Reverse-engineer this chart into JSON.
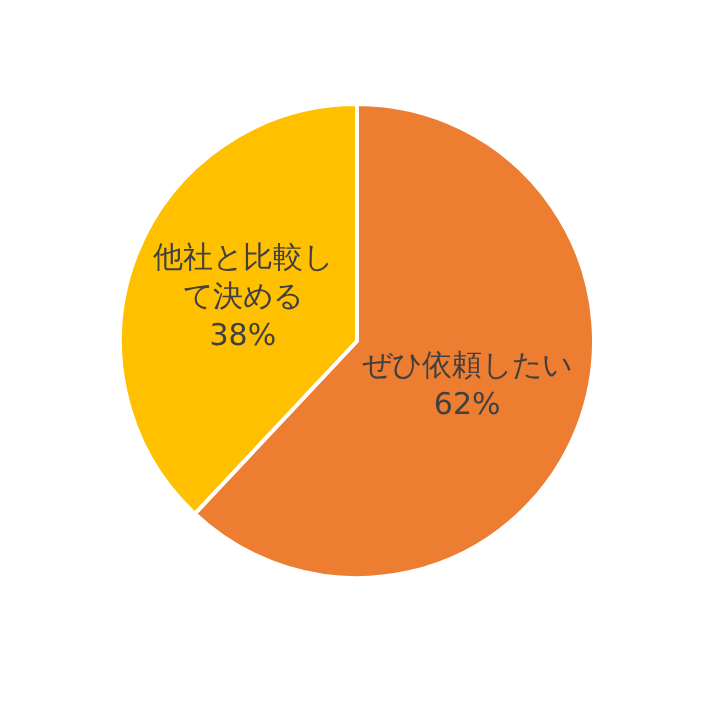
{
  "chart_data": {
    "type": "pie",
    "categories": [
      "ぜひ依頼したい",
      "他社と比較して決める"
    ],
    "values": [
      62,
      38
    ],
    "colors": [
      "#ed7d31",
      "#ffc000"
    ],
    "value_labels": [
      "62%",
      "38%"
    ],
    "legend": false
  }
}
